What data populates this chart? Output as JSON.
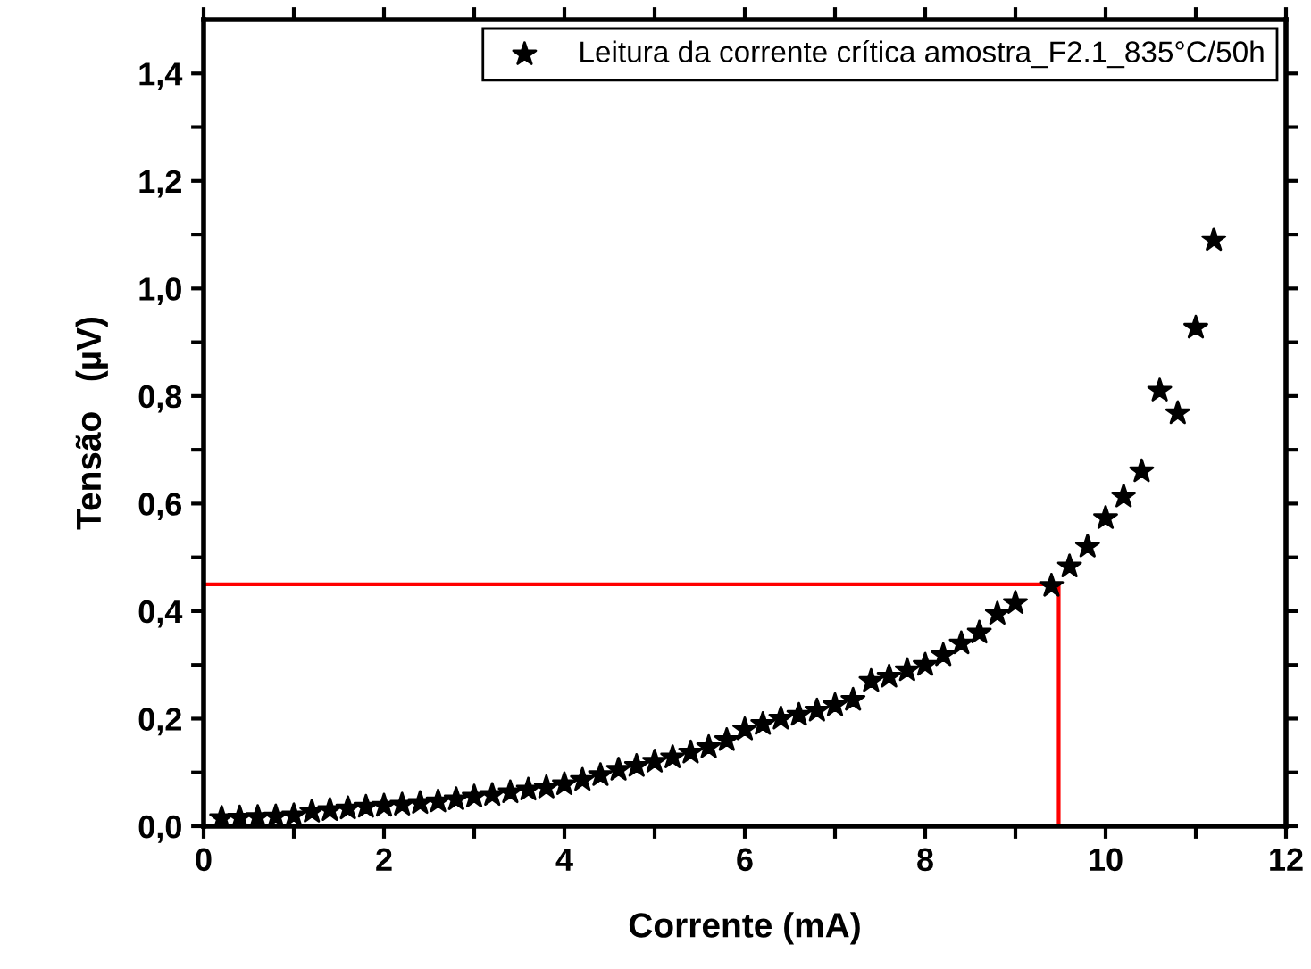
{
  "chart_data": {
    "type": "scatter",
    "xlabel": "Corrente (mA)",
    "ylabel": "Tensão   (µV)",
    "legend": "top right",
    "grid": false,
    "xlim": [
      0,
      12
    ],
    "ylim": [
      0,
      1.5
    ],
    "xticks": [
      0,
      {
        "value": 1,
        "label": null
      },
      2,
      {
        "value": 3,
        "label": null
      },
      4,
      {
        "value": 5,
        "label": null
      },
      6,
      {
        "value": 7,
        "label": null
      },
      8,
      {
        "value": 9,
        "label": null
      },
      10,
      {
        "value": 11,
        "label": null
      },
      12
    ],
    "yticks": [
      {
        "value": 0,
        "label": "0,0"
      },
      {
        "value": 0.1,
        "label": null
      },
      {
        "value": 0.2,
        "label": "0,2"
      },
      {
        "value": 0.3,
        "label": null
      },
      {
        "value": 0.4,
        "label": "0,4"
      },
      {
        "value": 0.5,
        "label": null
      },
      {
        "value": 0.6,
        "label": "0,6"
      },
      {
        "value": 0.7,
        "label": null
      },
      {
        "value": 0.8,
        "label": "0,8"
      },
      {
        "value": 0.9,
        "label": null
      },
      {
        "value": 1.0,
        "label": "1,0"
      },
      {
        "value": 1.1,
        "label": null
      },
      {
        "value": 1.2,
        "label": "1,2"
      },
      {
        "value": 1.3,
        "label": null
      },
      {
        "value": 1.4,
        "label": "1,4"
      }
    ],
    "series": [
      {
        "name": "Leitura da corrente crítica amostra_F2.1_835°C/50h",
        "color": "#000000",
        "marker": "star",
        "x": [
          0.2,
          0.4,
          0.6,
          0.8,
          1.0,
          1.2,
          1.4,
          1.6,
          1.8,
          2.0,
          2.2,
          2.4,
          2.6,
          2.8,
          3.0,
          3.2,
          3.4,
          3.6,
          3.8,
          4.0,
          4.2,
          4.4,
          4.6,
          4.8,
          5.0,
          5.2,
          5.4,
          5.6,
          5.8,
          6.0,
          6.2,
          6.4,
          6.6,
          6.8,
          7.0,
          7.2,
          7.4,
          7.6,
          7.8,
          8.0,
          8.2,
          8.4,
          8.6,
          8.8,
          9.0,
          9.4,
          9.6,
          9.8,
          10.0,
          10.2,
          10.4,
          10.6,
          10.8,
          11.0,
          11.2
        ],
        "values": [
          0.015,
          0.016,
          0.017,
          0.018,
          0.02,
          0.027,
          0.03,
          0.033,
          0.036,
          0.038,
          0.04,
          0.043,
          0.046,
          0.05,
          0.055,
          0.058,
          0.063,
          0.068,
          0.072,
          0.078,
          0.086,
          0.095,
          0.105,
          0.112,
          0.12,
          0.128,
          0.137,
          0.147,
          0.16,
          0.18,
          0.19,
          0.2,
          0.207,
          0.215,
          0.225,
          0.235,
          0.27,
          0.278,
          0.29,
          0.3,
          0.318,
          0.34,
          0.36,
          0.395,
          0.415,
          0.447,
          0.483,
          0.52,
          0.573,
          0.613,
          0.66,
          0.81,
          0.768,
          0.927,
          1.09
        ]
      },
      {
        "type": "line",
        "color": "#ff0000",
        "marker": "none",
        "x": [
          0,
          9.48,
          9.48
        ],
        "values": [
          0.45,
          0.45,
          0
        ]
      }
    ]
  }
}
